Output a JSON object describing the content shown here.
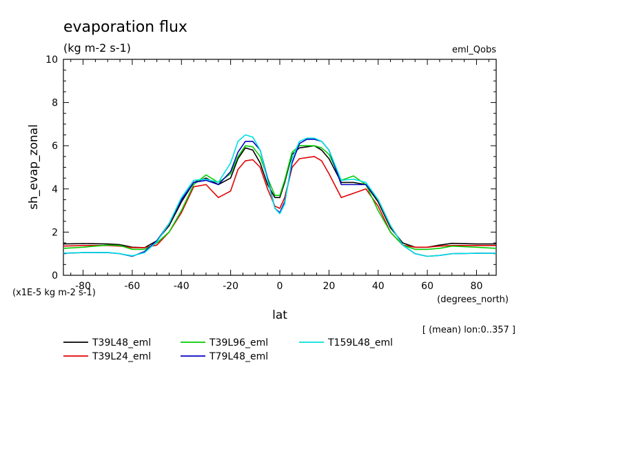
{
  "chart_data": {
    "type": "line",
    "title": "evaporation flux",
    "subtitle": "(kg m-2 s-1)",
    "experiment_label": "eml_Qobs",
    "xlabel": "lat",
    "x_unit_label": "(degrees_north)",
    "ylabel": "sh_evap_zonal",
    "y_unit_label": "(x1E-5 kg m-2 s-1)",
    "note": "[ (mean) lon:0..357 ]",
    "xlim": [
      -88,
      88
    ],
    "ylim": [
      0,
      10
    ],
    "x_ticks": [
      -80,
      -60,
      -40,
      -20,
      0,
      20,
      40,
      60,
      80
    ],
    "x_tick_labels": [
      "-80",
      "-60",
      "-40",
      "-20",
      "0",
      "20",
      "40",
      "60",
      "80"
    ],
    "y_ticks": [
      0,
      2,
      4,
      6,
      8,
      10
    ],
    "y_tick_labels": [
      "0",
      "2",
      "4",
      "6",
      "8",
      "10"
    ],
    "grid": false,
    "legend_position": "bottom",
    "x": [
      -88,
      -80,
      -70,
      -65,
      -60,
      -55,
      -50,
      -45,
      -40,
      -35,
      -30,
      -25,
      -20,
      -17,
      -14,
      -11,
      -8,
      -5,
      -2,
      0,
      2,
      5,
      8,
      11,
      14,
      17,
      20,
      25,
      30,
      35,
      40,
      45,
      50,
      55,
      60,
      65,
      70,
      80,
      88
    ],
    "series": [
      {
        "name": "T39L48_eml",
        "color": "#000000",
        "values": [
          1.45,
          1.47,
          1.45,
          1.42,
          1.3,
          1.28,
          1.6,
          2.3,
          3.4,
          4.3,
          4.5,
          4.2,
          4.5,
          5.4,
          5.9,
          5.8,
          5.2,
          4.2,
          3.6,
          3.6,
          4.3,
          5.6,
          5.9,
          5.95,
          6.0,
          5.8,
          5.4,
          4.3,
          4.3,
          4.2,
          3.4,
          2.2,
          1.5,
          1.3,
          1.3,
          1.4,
          1.48,
          1.45,
          1.45
        ]
      },
      {
        "name": "T39L24_eml",
        "color": "#e00000",
        "values": [
          1.35,
          1.38,
          1.38,
          1.35,
          1.28,
          1.28,
          1.4,
          2.0,
          2.9,
          4.1,
          4.2,
          3.6,
          3.9,
          4.9,
          5.3,
          5.35,
          5.0,
          4.0,
          3.2,
          3.1,
          3.6,
          5.0,
          5.4,
          5.45,
          5.5,
          5.3,
          4.7,
          3.6,
          3.8,
          4.0,
          3.2,
          2.0,
          1.4,
          1.3,
          1.3,
          1.35,
          1.38,
          1.38,
          1.38
        ]
      },
      {
        "name": "T39L96_eml",
        "color": "#00cc00",
        "values": [
          1.25,
          1.3,
          1.4,
          1.38,
          1.2,
          1.2,
          1.5,
          2.0,
          3.0,
          4.2,
          4.65,
          4.3,
          4.7,
          5.5,
          6.0,
          5.95,
          5.5,
          4.5,
          3.7,
          3.7,
          4.4,
          5.7,
          6.0,
          6.0,
          6.0,
          5.9,
          5.6,
          4.4,
          4.6,
          4.2,
          3.0,
          2.0,
          1.4,
          1.2,
          1.2,
          1.25,
          1.35,
          1.3,
          1.25
        ]
      },
      {
        "name": "T79L48_eml",
        "color": "#0000c0",
        "values": [
          1.02,
          1.05,
          1.05,
          1.0,
          0.88,
          1.1,
          1.6,
          2.4,
          3.5,
          4.3,
          4.4,
          4.2,
          4.8,
          5.7,
          6.2,
          6.2,
          5.8,
          4.5,
          3.1,
          2.9,
          3.4,
          5.2,
          6.1,
          6.3,
          6.3,
          6.2,
          5.8,
          4.2,
          4.2,
          4.2,
          3.5,
          2.3,
          1.4,
          1.0,
          0.88,
          0.92,
          1.0,
          1.02,
          1.02
        ]
      },
      {
        "name": "T159L48_eml",
        "color": "#00e0e0",
        "values": [
          1.03,
          1.05,
          1.06,
          1.0,
          0.9,
          1.05,
          1.55,
          2.4,
          3.6,
          4.4,
          4.45,
          4.3,
          5.2,
          6.2,
          6.5,
          6.4,
          5.8,
          4.4,
          3.1,
          2.85,
          3.3,
          5.4,
          6.2,
          6.35,
          6.35,
          6.2,
          5.8,
          4.4,
          4.45,
          4.3,
          3.5,
          2.3,
          1.4,
          1.0,
          0.88,
          0.92,
          1.0,
          1.02,
          1.02
        ]
      }
    ]
  }
}
